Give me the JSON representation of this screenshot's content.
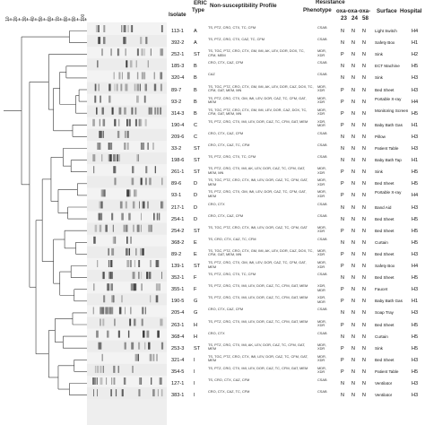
{
  "headers": {
    "scale_ticks": [
      "10",
      "20",
      "30",
      "40",
      "50",
      "60",
      "70",
      "80",
      "90",
      "100"
    ],
    "isolate": "Isolate",
    "eric_line1": "ERIC",
    "eric_line2": "Type",
    "profile": "Non-susceptibility Profile",
    "resistance": "Resistance",
    "phenotype": "Phenotype",
    "oxa_line1": "oxa-oxa-oxa-",
    "oxa23": "23",
    "oxa24": "24",
    "oxa58": "58",
    "surface": "Surface",
    "hospital": "Hospital"
  },
  "rows": [
    {
      "isolate": "113-1",
      "eric": "A",
      "profile": "TS, PTZ, CRO, CTX, TC, CFM",
      "phenotype": "CSAB",
      "oxa23": "N",
      "oxa24": "N",
      "oxa58": "N",
      "surface": "Light Switch",
      "hospital": "H4"
    },
    {
      "isolate": "392-2",
      "eric": "A",
      "profile": "TS, PTZ, CRO, CTX, CAZ, TC, CFM",
      "phenotype": "CSAB",
      "oxa23": "N",
      "oxa24": "N",
      "oxa58": "N",
      "surface": "Safety Box",
      "hospital": "H1"
    },
    {
      "isolate": "252-1",
      "eric": "ST",
      "profile": "TS, TGC, PTZ, CRO, CTX, GM, IMI, AK, LEV, DOR, DOX, TC, CFM, MEM",
      "phenotype": "MDR, XDR",
      "oxa23": "P",
      "oxa24": "N",
      "oxa58": "N",
      "surface": "Sink",
      "hospital": "H2"
    },
    {
      "isolate": "185-3",
      "eric": "B",
      "profile": "CRO, CTX, CAZ, CFM",
      "phenotype": "CSAB",
      "oxa23": "N",
      "oxa24": "N",
      "oxa58": "N",
      "surface": "ECT Machine",
      "hospital": "H5"
    },
    {
      "isolate": "320-4",
      "eric": "B",
      "profile": "CAZ",
      "phenotype": "CSAB",
      "oxa23": "N",
      "oxa24": "N",
      "oxa58": "N",
      "surface": "Sink",
      "hospital": "H3"
    },
    {
      "isolate": "89-7",
      "eric": "B",
      "profile": "TS, TGC, PTZ, CRO, CTX, GM, IMI, AK, LEV, DOR, CAZ, DOX, TC, CFM, GAT, MEM, MN",
      "phenotype": "MDR, XDR",
      "oxa23": "P",
      "oxa24": "N",
      "oxa58": "N",
      "surface": "Bed Sheet",
      "hospital": "H3"
    },
    {
      "isolate": "93-2",
      "eric": "B",
      "profile": "TS, PTZ, CRO, CTX, GM, IMI, LEV, DOR, CAZ, TC, CFM, GAT, MEM",
      "phenotype": "MDR, XDR",
      "oxa23": "P",
      "oxa24": "N",
      "oxa58": "N",
      "surface": "Portable X-ray",
      "hospital": "H4"
    },
    {
      "isolate": "314-3",
      "eric": "B",
      "profile": "TS, TGC, PTZ, CRO, CTX, GM, IMI, LEV, DOR, CAZ, DOX, TC, CFM, GAT, MEM, MN",
      "phenotype": "MDR, XDR",
      "oxa23": "P",
      "oxa24": "N",
      "oxa58": "N",
      "surface": "Monitoring Screen",
      "hospital": "H5"
    },
    {
      "isolate": "190-4",
      "eric": "C",
      "profile": "TS, PTZ, CRO, CTX, IMI, LEV, DOR, CAZ, TC, CFM, GAT, MEM",
      "phenotype": "XDR, MDR",
      "oxa23": "P",
      "oxa24": "N",
      "oxa58": "N",
      "surface": "Baby Bath Gas",
      "hospital": "H1"
    },
    {
      "isolate": "209-6",
      "eric": "C",
      "profile": "CRO, CTX, CAZ, CFM",
      "phenotype": "CSAB",
      "oxa23": "N",
      "oxa24": "N",
      "oxa58": "N",
      "surface": "Pillow",
      "hospital": "H3"
    },
    {
      "isolate": "33-2",
      "eric": "ST",
      "profile": "CRO, CTX, CAZ, TC, CFM",
      "phenotype": "CSAB",
      "oxa23": "N",
      "oxa24": "N",
      "oxa58": "N",
      "surface": "Patient Table",
      "hospital": "H3"
    },
    {
      "isolate": "198-6",
      "eric": "ST",
      "profile": "TS, PTZ, CRO, CTX, TC, CFM",
      "phenotype": "CSAB",
      "oxa23": "N",
      "oxa24": "N",
      "oxa58": "N",
      "surface": "Baby Bath Tap",
      "hospital": "H1"
    },
    {
      "isolate": "261-1",
      "eric": "ST",
      "profile": "TS, PTZ, CRO, CTX, IMI, AK, LEV, DOR, CAZ, TC, CFM, GAT, MEM, MN",
      "phenotype": "MDR, XDR",
      "oxa23": "P",
      "oxa24": "N",
      "oxa58": "N",
      "surface": "Sink",
      "hospital": "H5"
    },
    {
      "isolate": "89-6",
      "eric": "D",
      "profile": "TS, TGC, PTZ, CRO, CTX, IMI, LEV, DOR, CAZ, TC, CFM, GAT, MEM",
      "phenotype": "MDR, XDR",
      "oxa23": "P",
      "oxa24": "N",
      "oxa58": "N",
      "surface": "Bed Sheet",
      "hospital": "H5"
    },
    {
      "isolate": "93-1",
      "eric": "D",
      "profile": "TS, PTZ, CRO, CTX, GM, IMI, LEV, DOR, CAZ, TC, CFM, GAT, MEM",
      "phenotype": "MDR, XDR",
      "oxa23": "P",
      "oxa24": "N",
      "oxa58": "N",
      "surface": "Portable X-ray",
      "hospital": "H4"
    },
    {
      "isolate": "217-1",
      "eric": "D",
      "profile": "CRO, CTX",
      "phenotype": "CSAB",
      "oxa23": "N",
      "oxa24": "N",
      "oxa58": "N",
      "surface": "Band Aid",
      "hospital": "H3"
    },
    {
      "isolate": "254-1",
      "eric": "D",
      "profile": "CRO, CTX, CAZ, CFM",
      "phenotype": "CSAB",
      "oxa23": "N",
      "oxa24": "N",
      "oxa58": "N",
      "surface": "Bed Sheet",
      "hospital": "H5"
    },
    {
      "isolate": "254-2",
      "eric": "ST",
      "profile": "TS, TGC, PTZ, CRO, CTX, IMI, LEV, DOR, CAZ, TC, CFM, GAT",
      "phenotype": "MDR, XDR",
      "oxa23": "P",
      "oxa24": "N",
      "oxa58": "N",
      "surface": "Bed Sheet",
      "hospital": "H5"
    },
    {
      "isolate": "368-2",
      "eric": "E",
      "profile": "TS, CRO, CTX, CAZ, TC, CFM",
      "phenotype": "CSAB",
      "oxa23": "N",
      "oxa24": "N",
      "oxa58": "N",
      "surface": "Curtain",
      "hospital": "H5"
    },
    {
      "isolate": "89-2",
      "eric": "E",
      "profile": "TS, TGC, PTZ, CRO, CTX, GM, IMI, AK, LEV, DOR, CAZ, DOX, TC, CFM, GAT, MEM, MN",
      "phenotype": "MDR, XDR",
      "oxa23": "P",
      "oxa24": "N",
      "oxa58": "N",
      "surface": "Bed Sheet",
      "hospital": "H3"
    },
    {
      "isolate": "139-1",
      "eric": "ST",
      "profile": "TS, PTZ, CRO, CTX, GM, IMI, LEV, DOR, CAZ, TC, CFM, GAT, MEM",
      "phenotype": "MDR, XDR",
      "oxa23": "P",
      "oxa24": "N",
      "oxa58": "N",
      "surface": "Safety Box",
      "hospital": "H4"
    },
    {
      "isolate": "352-1",
      "eric": "F",
      "profile": "TS, PTZ, CRO, CTX, TC, CFM",
      "phenotype": "CSAB",
      "oxa23": "N",
      "oxa24": "N",
      "oxa58": "N",
      "surface": "Bed Sheet",
      "hospital": "H5"
    },
    {
      "isolate": "355-1",
      "eric": "F",
      "profile": "TS, PTZ, CRO, CTX, IMI, LEV, DOR, CAZ, TC, CFM, GAT, MEM",
      "phenotype": "XDR, MDR",
      "oxa23": "P",
      "oxa24": "N",
      "oxa58": "N",
      "surface": "Faucet",
      "hospital": "H3"
    },
    {
      "isolate": "190-5",
      "eric": "G",
      "profile": "TS, PTZ, CRO, CTX, IMI, LEV, DOR, CAZ, TC, CFM, GAT, MEM",
      "phenotype": "XDR, MDR",
      "oxa23": "P",
      "oxa24": "N",
      "oxa58": "N",
      "surface": "Baby Bath Gas",
      "hospital": "H1"
    },
    {
      "isolate": "205-4",
      "eric": "G",
      "profile": "CRO, CTX, CAZ, CFM",
      "phenotype": "CSAB",
      "oxa23": "N",
      "oxa24": "N",
      "oxa58": "N",
      "surface": "Soap Tray",
      "hospital": "H3"
    },
    {
      "isolate": "263-1",
      "eric": "H",
      "profile": "TS, PTZ, CRO, CTX, IMI, LEV, DOR, CAZ, TC, CFM, GAT, MEM",
      "phenotype": "MDR, XDR",
      "oxa23": "P",
      "oxa24": "N",
      "oxa58": "N",
      "surface": "Bed Sheet",
      "hospital": "H5"
    },
    {
      "isolate": "368-4",
      "eric": "H",
      "profile": "CRO, CTX",
      "phenotype": "CSAB",
      "oxa23": "N",
      "oxa24": "N",
      "oxa58": "N",
      "surface": "Curtain",
      "hospital": "H5"
    },
    {
      "isolate": "253-3",
      "eric": "ST",
      "profile": "TS, PTZ, CRO, CTX, IMI, AK, LEV, DOR, CAZ, TC, CFM, GAT, MEM",
      "phenotype": "MDR, XDR",
      "oxa23": "P",
      "oxa24": "N",
      "oxa58": "N",
      "surface": "Sink",
      "hospital": "H5"
    },
    {
      "isolate": "321-4",
      "eric": "I",
      "profile": "TS, TGC, PTZ, CRO, CTX, IMI, LEV, DOR, CAZ, TC, CFM, GAT, MEM",
      "phenotype": "MDR, XDR",
      "oxa23": "P",
      "oxa24": "N",
      "oxa58": "N",
      "surface": "Bed Sheet",
      "hospital": "H3"
    },
    {
      "isolate": "354-5",
      "eric": "I",
      "profile": "TS, PTZ, CRO, CTX, IMI, LEV, DOR, CAZ, TC, CFM, GAT, MEM",
      "phenotype": "MDR, XDR",
      "oxa23": "P",
      "oxa24": "N",
      "oxa58": "N",
      "surface": "Patient Table",
      "hospital": "H5"
    },
    {
      "isolate": "127-1",
      "eric": "I",
      "profile": "TS, CRO, CTX, CAZ, CFM",
      "phenotype": "CSAB",
      "oxa23": "N",
      "oxa24": "N",
      "oxa58": "N",
      "surface": "Ventilator",
      "hospital": "H3"
    },
    {
      "isolate": "383-1",
      "eric": "I",
      "profile": "CRO, CTX, CAZ, TC, CFM",
      "phenotype": "CSAB",
      "oxa23": "N",
      "oxa24": "N",
      "oxa58": "N",
      "surface": "Ventilator",
      "hospital": "H3"
    }
  ]
}
